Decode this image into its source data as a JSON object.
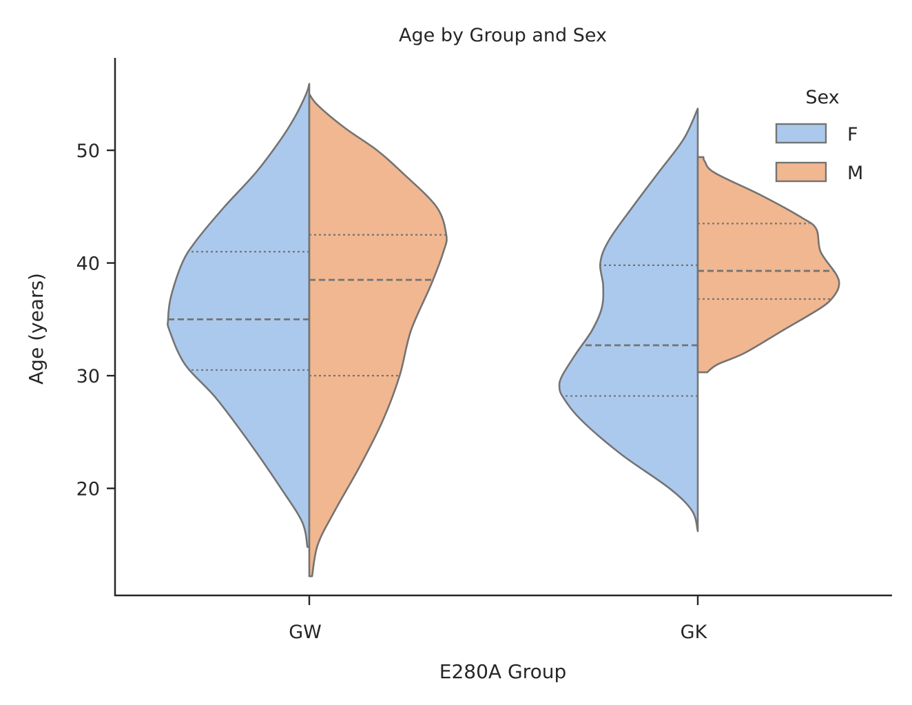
{
  "chart_data": {
    "type": "violin",
    "split": true,
    "title": "Age by Group and Sex",
    "xlabel": "E280A Group",
    "ylabel": "Age (years)",
    "ylim": [
      10.5,
      58.2
    ],
    "yticks": [
      20,
      30,
      40,
      50
    ],
    "categories": [
      "GW",
      "GK"
    ],
    "legend": {
      "title": "Sex",
      "position": "top-right",
      "entries": [
        {
          "label": "F",
          "color": "#abc9ed"
        },
        {
          "label": "M",
          "color": "#f0b790"
        }
      ]
    },
    "outline_color": "#737373",
    "groups": [
      {
        "category": "GW",
        "halves": [
          {
            "sex": "F",
            "min": 14.8,
            "max": 55.9,
            "q1": 30.5,
            "median": 35.0,
            "q3": 41.0,
            "density": [
              [
                14.8,
                0.013
              ],
              [
                17,
                0.05
              ],
              [
                20,
                0.2
              ],
              [
                24,
                0.42
              ],
              [
                28,
                0.66
              ],
              [
                31,
                0.88
              ],
              [
                34,
                0.99
              ],
              [
                35,
                1.0
              ],
              [
                37,
                0.98
              ],
              [
                40,
                0.9
              ],
              [
                42,
                0.8
              ],
              [
                45,
                0.6
              ],
              [
                48,
                0.38
              ],
              [
                51,
                0.2
              ],
              [
                53,
                0.1
              ],
              [
                55,
                0.022
              ],
              [
                55.9,
                0.0
              ]
            ]
          },
          {
            "sex": "M",
            "min": 12.2,
            "max": 55.0,
            "q1": 30.0,
            "median": 38.5,
            "q3": 42.5,
            "density": [
              [
                12.2,
                0.02
              ],
              [
                15,
                0.06
              ],
              [
                18,
                0.18
              ],
              [
                22,
                0.36
              ],
              [
                26,
                0.52
              ],
              [
                30,
                0.64
              ],
              [
                34,
                0.72
              ],
              [
                38,
                0.86
              ],
              [
                41,
                0.95
              ],
              [
                42.5,
                0.97
              ],
              [
                45,
                0.9
              ],
              [
                48,
                0.66
              ],
              [
                50,
                0.48
              ],
              [
                52,
                0.25
              ],
              [
                54,
                0.06
              ],
              [
                55,
                0.0
              ]
            ]
          }
        ]
      },
      {
        "category": "GK",
        "halves": [
          {
            "sex": "F",
            "min": 16.2,
            "max": 53.7,
            "q1": 28.2,
            "median": 32.7,
            "q3": 39.8,
            "density": [
              [
                16.2,
                0.0
              ],
              [
                18,
                0.04
              ],
              [
                20,
                0.2
              ],
              [
                23,
                0.54
              ],
              [
                26,
                0.82
              ],
              [
                28,
                0.95
              ],
              [
                29,
                0.98
              ],
              [
                30,
                0.96
              ],
              [
                32,
                0.86
              ],
              [
                34,
                0.75
              ],
              [
                36,
                0.68
              ],
              [
                38,
                0.67
              ],
              [
                40,
                0.69
              ],
              [
                42,
                0.63
              ],
              [
                45,
                0.46
              ],
              [
                48,
                0.28
              ],
              [
                51,
                0.1
              ],
              [
                53.7,
                0.0
              ]
            ]
          },
          {
            "sex": "M",
            "min": 30.3,
            "max": 49.4,
            "q1": 36.8,
            "median": 39.3,
            "q3": 43.5,
            "density": [
              [
                30.3,
                0.067
              ],
              [
                31,
                0.14
              ],
              [
                32,
                0.33
              ],
              [
                34,
                0.6
              ],
              [
                36,
                0.87
              ],
              [
                37,
                0.96
              ],
              [
                38,
                1.0
              ],
              [
                39,
                0.98
              ],
              [
                41,
                0.87
              ],
              [
                43,
                0.84
              ],
              [
                44,
                0.74
              ],
              [
                46,
                0.45
              ],
              [
                48,
                0.12
              ],
              [
                49,
                0.05
              ],
              [
                49.4,
                0.04
              ]
            ]
          }
        ]
      }
    ]
  }
}
